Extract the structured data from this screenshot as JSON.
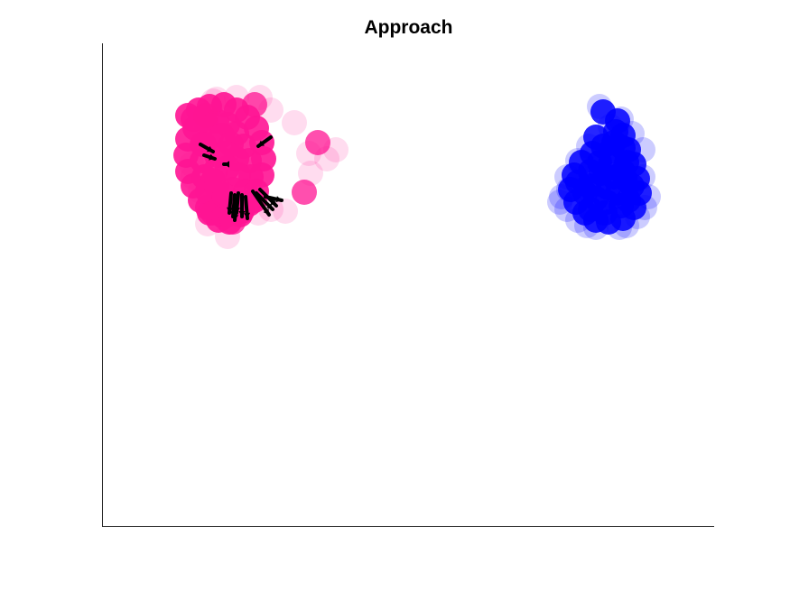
{
  "chart_data": {
    "type": "scatter",
    "title": "Approach",
    "xlabel": "",
    "ylabel": "",
    "axes": {
      "box": "left-bottom",
      "ticks": false,
      "grid": false
    },
    "colors": {
      "magenta": "#ff1493",
      "blue": "#0000ff",
      "arrow": "#000000"
    },
    "series": [
      {
        "color": "#ff1493",
        "points": [
          [
            208,
            128
          ],
          [
            220,
            122
          ],
          [
            232,
            118
          ],
          [
            248,
            116
          ],
          [
            262,
            122
          ],
          [
            274,
            130
          ],
          [
            284,
            142
          ],
          [
            290,
            158
          ],
          [
            292,
            176
          ],
          [
            290,
            194
          ],
          [
            284,
            212
          ],
          [
            276,
            226
          ],
          [
            266,
            238
          ],
          [
            254,
            246
          ],
          [
            242,
            244
          ],
          [
            232,
            236
          ],
          [
            222,
            222
          ],
          [
            214,
            206
          ],
          [
            208,
            190
          ],
          [
            206,
            172
          ],
          [
            208,
            154
          ],
          [
            216,
            142
          ],
          [
            228,
            136
          ],
          [
            240,
            134
          ],
          [
            252,
            138
          ],
          [
            262,
            148
          ],
          [
            270,
            162
          ],
          [
            276,
            178
          ],
          [
            278,
            196
          ],
          [
            272,
            212
          ],
          [
            262,
            224
          ],
          [
            250,
            230
          ],
          [
            238,
            226
          ],
          [
            230,
            212
          ],
          [
            226,
            196
          ],
          [
            224,
            178
          ],
          [
            226,
            160
          ],
          [
            234,
            150
          ],
          [
            246,
            150
          ],
          [
            256,
            160
          ],
          [
            262,
            176
          ],
          [
            264,
            194
          ],
          [
            258,
            210
          ],
          [
            248,
            216
          ],
          [
            240,
            206
          ],
          [
            238,
            190
          ],
          [
            240,
            172
          ],
          [
            250,
            170
          ],
          [
            252,
            186
          ],
          [
            214,
            132
          ],
          [
            224,
            160
          ],
          [
            236,
            200
          ],
          [
            248,
            240
          ],
          [
            268,
            234
          ],
          [
            282,
            222
          ],
          [
            230,
            230
          ]
        ],
        "alpha": 0.9
      },
      {
        "color": "#ff1493",
        "points": [
          [
            282,
            116
          ],
          [
            352,
            158
          ],
          [
            337,
            213
          ],
          [
            258,
            246
          ],
          [
            236,
            236
          ],
          [
            228,
            128
          ]
        ],
        "alpha": 0.75
      },
      {
        "color": "#ff1493",
        "points": [
          [
            288,
            108
          ],
          [
            262,
            108
          ],
          [
            236,
            112
          ],
          [
            326,
            136
          ],
          [
            342,
            170
          ],
          [
            372,
            166
          ],
          [
            300,
            232
          ],
          [
            316,
            234
          ],
          [
            222,
            212
          ],
          [
            212,
            182
          ],
          [
            252,
            262
          ],
          [
            286,
            236
          ],
          [
            362,
            176
          ],
          [
            344,
            192
          ],
          [
            240,
            110
          ],
          [
            300,
            122
          ],
          [
            214,
            196
          ],
          [
            230,
            248
          ]
        ],
        "alpha": 0.15
      },
      {
        "color": "#0000ff",
        "points": [
          [
            668,
            124
          ],
          [
            684,
            134
          ],
          [
            690,
            150
          ],
          [
            696,
            166
          ],
          [
            702,
            182
          ],
          [
            706,
            198
          ],
          [
            708,
            214
          ],
          [
            702,
            230
          ],
          [
            690,
            242
          ],
          [
            674,
            246
          ],
          [
            660,
            244
          ],
          [
            648,
            236
          ],
          [
            638,
            224
          ],
          [
            632,
            210
          ],
          [
            636,
            194
          ],
          [
            644,
            180
          ],
          [
            656,
            170
          ],
          [
            668,
            162
          ],
          [
            680,
            158
          ],
          [
            690,
            164
          ],
          [
            694,
            180
          ],
          [
            692,
            198
          ],
          [
            684,
            214
          ],
          [
            672,
            224
          ],
          [
            660,
            220
          ],
          [
            652,
            206
          ],
          [
            654,
            190
          ],
          [
            664,
            180
          ],
          [
            676,
            182
          ],
          [
            680,
            196
          ],
          [
            674,
            208
          ],
          [
            664,
            204
          ],
          [
            666,
            192
          ],
          [
            670,
            236
          ],
          [
            688,
            228
          ],
          [
            648,
            214
          ],
          [
            700,
            206
          ],
          [
            682,
            146
          ],
          [
            660,
            152
          ],
          [
            640,
            202
          ],
          [
            696,
            222
          ],
          [
            654,
            232
          ],
          [
            676,
            168
          ],
          [
            690,
            190
          ]
        ],
        "alpha": 0.85
      },
      {
        "color": "#0000ff",
        "points": [
          [
            664,
            118
          ],
          [
            688,
            132
          ],
          [
            700,
            148
          ],
          [
            712,
            196
          ],
          [
            718,
            218
          ],
          [
            706,
            240
          ],
          [
            686,
            252
          ],
          [
            660,
            252
          ],
          [
            640,
            244
          ],
          [
            628,
            232
          ],
          [
            622,
            218
          ],
          [
            628,
            196
          ],
          [
            640,
            178
          ],
          [
            652,
            162
          ],
          [
            676,
            140
          ],
          [
            712,
            166
          ],
          [
            630,
            210
          ],
          [
            650,
            250
          ],
          [
            694,
            250
          ],
          [
            620,
            224
          ],
          [
            714,
            230
          ]
        ],
        "alpha": 0.2
      }
    ],
    "arrows": [
      [
        [
          300,
          152
        ],
        [
          286,
          162
        ]
      ],
      [
        [
          222,
          160
        ],
        [
          236,
          168
        ]
      ],
      [
        [
          226,
          172
        ],
        [
          238,
          176
        ]
      ],
      [
        [
          250,
          182
        ],
        [
          248,
          182
        ]
      ],
      [
        [
          256,
          214
        ],
        [
          254,
          236
        ]
      ],
      [
        [
          260,
          216
        ],
        [
          258,
          240
        ]
      ],
      [
        [
          264,
          214
        ],
        [
          262,
          236
        ]
      ],
      [
        [
          268,
          216
        ],
        [
          268,
          240
        ]
      ],
      [
        [
          272,
          218
        ],
        [
          274,
          242
        ]
      ],
      [
        [
          280,
          212
        ],
        [
          298,
          238
        ]
      ],
      [
        [
          284,
          214
        ],
        [
          302,
          232
        ]
      ],
      [
        [
          288,
          210
        ],
        [
          306,
          228
        ]
      ],
      [
        [
          294,
          218
        ],
        [
          312,
          222
        ]
      ],
      [
        [
          262,
          222
        ],
        [
          260,
          244
        ]
      ]
    ]
  }
}
